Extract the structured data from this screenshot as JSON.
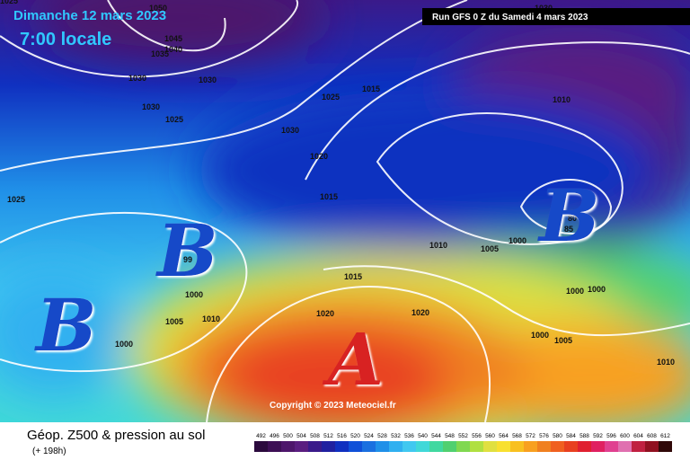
{
  "header": {
    "date": "Dimanche 12 mars 2023",
    "time": "7:00 locale",
    "run": "Run GFS 0 Z du Samedi 4 mars 2023",
    "copyright": "Copyright © 2023 Meteociel.fr"
  },
  "legend": {
    "title": "Géop. Z500 & pression au sol",
    "lead": "(+ 198h)",
    "scale": [
      492,
      496,
      500,
      504,
      508,
      512,
      516,
      520,
      524,
      528,
      532,
      536,
      540,
      544,
      548,
      552,
      556,
      560,
      564,
      568,
      572,
      576,
      580,
      584,
      588,
      592,
      596,
      600,
      604,
      608,
      612
    ],
    "colors": [
      "#2b0a3d",
      "#3d0f55",
      "#4d166b",
      "#5a1e80",
      "#3a1a8a",
      "#2020a0",
      "#1030c0",
      "#1050d8",
      "#1a70e0",
      "#2090e8",
      "#30b0f0",
      "#40c8f0",
      "#40d8d8",
      "#40d8a0",
      "#50d070",
      "#80d850",
      "#b0e040",
      "#e0e040",
      "#f8e030",
      "#f8c020",
      "#f8a020",
      "#f08020",
      "#f06020",
      "#e84020",
      "#e02030",
      "#e02060",
      "#e04090",
      "#e070b0",
      "#c02040",
      "#901020",
      "#300808"
    ]
  },
  "centers": [
    "B",
    "B",
    "B",
    "A"
  ],
  "isobars": [
    "1050",
    "1045",
    "1040",
    "1035",
    "1030",
    "1030",
    "1030",
    "1025",
    "1030",
    "1025",
    "1015",
    "1020",
    "1015",
    "1025",
    "1010",
    "1005",
    "1000",
    "1010",
    "1030",
    "99",
    "1000",
    "1005",
    "1010",
    "1000",
    "1015",
    "1020",
    "1020",
    "1000",
    "1000",
    "1000",
    "1005",
    "1010",
    "80",
    "85",
    "1025"
  ]
}
